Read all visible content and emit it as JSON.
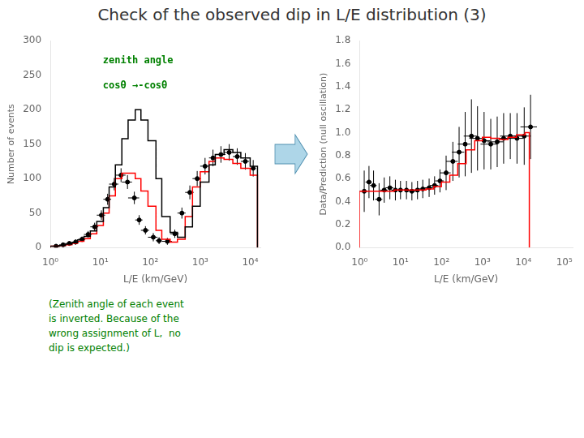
{
  "chart_data": [
    {
      "type": "scatter",
      "title": "Check of the observed dip in L/E distribution (3)",
      "xlabel": "L/E (km/GeV)",
      "ylabel": "Number of events",
      "log": "x",
      "grid": false,
      "xlim": [
        1,
        16000
      ],
      "xticks": [
        {
          "value": 1,
          "label": "10⁰"
        },
        {
          "value": 10,
          "label": "10¹"
        },
        {
          "value": 100,
          "label": "10²"
        },
        {
          "value": 1000,
          "label": "10³"
        },
        {
          "value": 10000,
          "label": "10⁴"
        }
      ],
      "ylim": [
        0,
        300
      ],
      "yticks": [
        0,
        50,
        100,
        150,
        200,
        250,
        300
      ],
      "annotations": [
        {
          "text": "zenith angle",
          "color": "#008000"
        },
        {
          "text": "cosθ →-cosθ",
          "color": "#008000"
        },
        {
          "text": "(Zenith angle of each event\nis inverted. Because of the\nwrong assignment of L,  no\ndip is expected.)",
          "color": "#008000"
        }
      ],
      "series": [
        {
          "type": "histogram",
          "color": "black",
          "bins": [
            1.0,
            1.5,
            2.0,
            2.7,
            3.5,
            4.7,
            6.3,
            8.5,
            11.5,
            15,
            20,
            27,
            36,
            50,
            65,
            90,
            130,
            170,
            250,
            350,
            500,
            700,
            1000,
            1500,
            2000,
            3000,
            4500,
            6500,
            10000,
            14000
          ],
          "values": [
            2,
            3,
            5,
            7,
            11,
            16,
            24,
            38,
            58,
            88,
            120,
            158,
            185,
            200,
            185,
            155,
            100,
            45,
            22,
            15,
            30,
            60,
            95,
            120,
            135,
            142,
            138,
            130,
            118
          ]
        },
        {
          "type": "histogram",
          "color": "red",
          "bins": [
            1.0,
            1.5,
            2.0,
            2.7,
            3.5,
            4.7,
            6.3,
            8.5,
            11.5,
            15,
            20,
            27,
            36,
            50,
            65,
            90,
            130,
            170,
            250,
            350,
            500,
            700,
            1000,
            1500,
            2000,
            3000,
            4500,
            6500,
            10000,
            14000
          ],
          "values": [
            2,
            3,
            4,
            6,
            9,
            13,
            20,
            32,
            50,
            75,
            100,
            108,
            108,
            100,
            82,
            60,
            25,
            12,
            8,
            12,
            45,
            88,
            110,
            125,
            130,
            128,
            122,
            115,
            105
          ]
        },
        {
          "type": "scatter",
          "color": "black",
          "marker": "circle",
          "x": [
            1.3,
            1.8,
            2.4,
            3.2,
            4.3,
            5.7,
            7.7,
            10.5,
            14,
            19,
            26,
            35,
            48,
            60,
            80,
            115,
            150,
            220,
            310,
            430,
            620,
            870,
            1250,
            1800,
            2600,
            3800,
            5500,
            8000,
            11500
          ],
          "values": [
            2,
            4,
            6,
            8,
            12,
            19,
            30,
            47,
            70,
            92,
            105,
            95,
            72,
            40,
            25,
            15,
            10,
            9,
            20,
            50,
            80,
            100,
            118,
            130,
            135,
            138,
            132,
            125,
            115
          ],
          "xerr_low": [
            0.3,
            0.3,
            0.4,
            0.5,
            0.7,
            1.0,
            1.4,
            2.0,
            2.5,
            4,
            6,
            8,
            12,
            10,
            15,
            25,
            20,
            50,
            60,
            80,
            120,
            170,
            250,
            300,
            600,
            800,
            1000,
            1500,
            1500
          ],
          "xerr_high": [
            0.3,
            0.3,
            0.4,
            0.5,
            0.7,
            1.0,
            1.4,
            2.0,
            2.5,
            4,
            6,
            8,
            12,
            10,
            15,
            25,
            20,
            50,
            60,
            80,
            120,
            170,
            250,
            300,
            600,
            800,
            1000,
            1500,
            1500
          ],
          "yerr": [
            2,
            3,
            3,
            4,
            4,
            5,
            6,
            7,
            8,
            9,
            10,
            10,
            9,
            7,
            6,
            6,
            5,
            5,
            6,
            8,
            10,
            11,
            12,
            12,
            12,
            12,
            12,
            12,
            12
          ]
        }
      ]
    },
    {
      "type": "scatter",
      "xlabel": "L/E (km/GeV)",
      "ylabel": "Data/Prediction (null oscillation)",
      "log": "x",
      "grid": false,
      "xlim": [
        1,
        160000
      ],
      "xticks": [
        {
          "value": 1,
          "label": "10⁰"
        },
        {
          "value": 10,
          "label": "10¹"
        },
        {
          "value": 100,
          "label": "10²"
        },
        {
          "value": 1000,
          "label": "10³"
        },
        {
          "value": 10000,
          "label": "10⁴"
        },
        {
          "value": 100000,
          "label": "10⁵"
        }
      ],
      "ylim": [
        0,
        1.8
      ],
      "yticks": [
        {
          "value": 0,
          "label": "0.0"
        },
        0.2,
        0.4,
        0.6,
        0.8,
        {
          "value": 1.0,
          "label": "1.0"
        },
        1.2,
        1.4,
        1.6,
        1.8
      ],
      "series": [
        {
          "type": "histogram",
          "color": "red",
          "bins": [
            1.0,
            2.0,
            3.0,
            4.5,
            7.0,
            11,
            17,
            27,
            42,
            65,
            100,
            160,
            250,
            400,
            650,
            1000,
            1600,
            2600,
            4200,
            6800,
            11000,
            14000
          ],
          "values": [
            0.49,
            0.49,
            0.49,
            0.49,
            0.5,
            0.5,
            0.5,
            0.5,
            0.51,
            0.53,
            0.57,
            0.63,
            0.73,
            0.85,
            0.93,
            0.96,
            0.95,
            0.94,
            0.96,
            0.98,
            1.0
          ]
        },
        {
          "type": "scatter",
          "color": "black",
          "marker": "circle",
          "x": [
            1.3,
            1.7,
            2.2,
            3.0,
            4.0,
            5.5,
            7.5,
            10,
            14,
            19,
            26,
            35,
            50,
            68,
            92,
            130,
            190,
            270,
            380,
            540,
            760,
            1100,
            1600,
            2300,
            3300,
            4800,
            7000,
            10500,
            15000
          ],
          "values": [
            0.49,
            0.57,
            0.54,
            0.42,
            0.5,
            0.52,
            0.5,
            0.5,
            0.5,
            0.49,
            0.5,
            0.51,
            0.52,
            0.54,
            0.58,
            0.65,
            0.75,
            0.83,
            0.9,
            0.97,
            0.95,
            0.93,
            0.9,
            0.92,
            0.95,
            0.97,
            0.95,
            0.97,
            1.05
          ],
          "xerr_low": [
            0.3,
            0.3,
            0.4,
            0.6,
            0.8,
            1.2,
            1.5,
            2.5,
            3,
            4.5,
            6,
            8,
            12,
            16,
            22,
            38,
            60,
            90,
            130,
            190,
            280,
            450,
            700,
            1000,
            1400,
            2100,
            3200,
            4700,
            6500
          ],
          "xerr_high": [
            0.3,
            0.3,
            0.4,
            0.6,
            0.8,
            1.2,
            1.5,
            2.5,
            3,
            4.5,
            6,
            8,
            12,
            16,
            22,
            38,
            60,
            90,
            130,
            190,
            280,
            450,
            700,
            1000,
            1400,
            2100,
            3200,
            4700,
            6500
          ],
          "yerr": [
            0.18,
            0.14,
            0.13,
            0.14,
            0.11,
            0.1,
            0.09,
            0.08,
            0.08,
            0.08,
            0.08,
            0.08,
            0.08,
            0.08,
            0.1,
            0.15,
            0.17,
            0.22,
            0.28,
            0.32,
            0.28,
            0.25,
            0.22,
            0.22,
            0.22,
            0.2,
            0.22,
            0.25,
            0.28
          ]
        }
      ]
    }
  ]
}
